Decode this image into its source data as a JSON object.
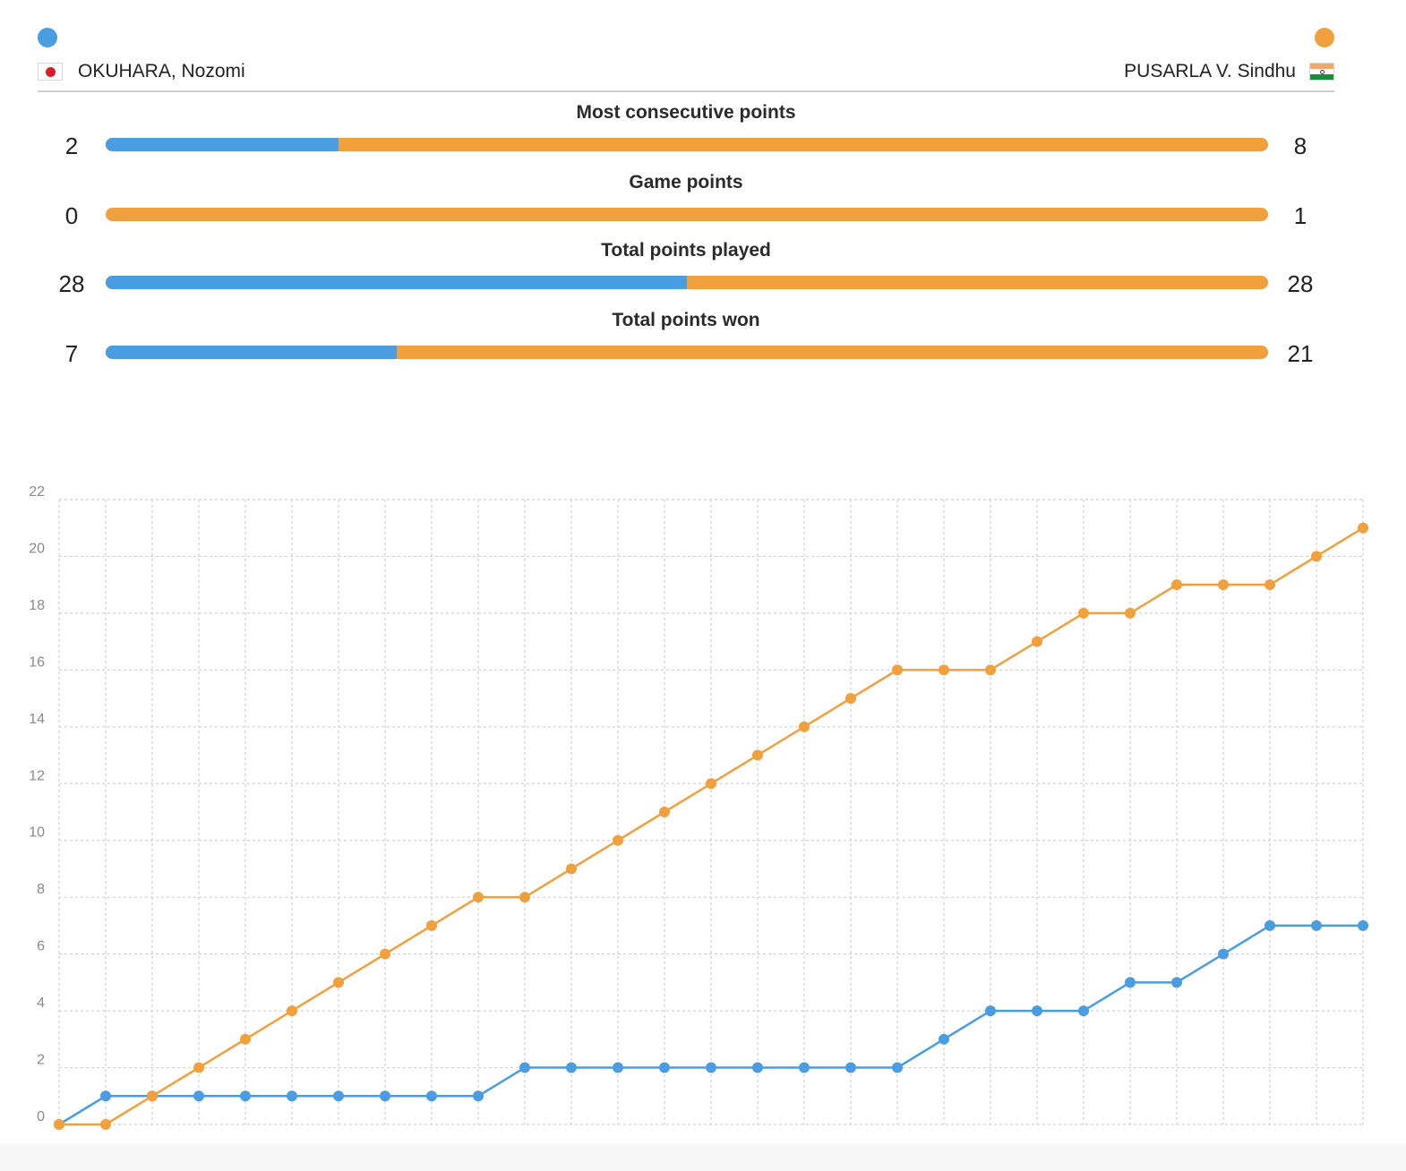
{
  "players": {
    "left": {
      "name": "OKUHARA, Nozomi",
      "color": "#4a9de0",
      "flag": "japan-flag"
    },
    "right": {
      "name": "PUSARLA V. Sindhu",
      "color": "#f0a03c",
      "flag": "india-flag"
    }
  },
  "stats": [
    {
      "title": "Most consecutive points",
      "left": "2",
      "right": "8",
      "left_fraction": 0.2
    },
    {
      "title": "Game points",
      "left": "0",
      "right": "1",
      "left_fraction": 0.0
    },
    {
      "title": "Total points played",
      "left": "28",
      "right": "28",
      "left_fraction": 0.5
    },
    {
      "title": "Total points won",
      "left": "7",
      "right": "21",
      "left_fraction": 0.25
    }
  ],
  "chart_data": {
    "type": "line",
    "title": "",
    "xlabel": "",
    "ylabel": "",
    "x": [
      0,
      1,
      2,
      3,
      4,
      5,
      6,
      7,
      8,
      9,
      10,
      11,
      12,
      13,
      14,
      15,
      16,
      17,
      18,
      19,
      20,
      21,
      22,
      23,
      24,
      25,
      26,
      27,
      28
    ],
    "ylim": [
      0,
      22
    ],
    "yticks": [
      0,
      2,
      4,
      6,
      8,
      10,
      12,
      14,
      16,
      18,
      20,
      22
    ],
    "grid": true,
    "series": [
      {
        "name": "OKUHARA, Nozomi",
        "color": "#4a9de0",
        "values": [
          0,
          1,
          1,
          1,
          1,
          1,
          1,
          1,
          1,
          1,
          2,
          2,
          2,
          2,
          2,
          2,
          2,
          2,
          2,
          3,
          4,
          4,
          4,
          5,
          5,
          6,
          7,
          7,
          7
        ]
      },
      {
        "name": "PUSARLA V. Sindhu",
        "color": "#f0a03c",
        "values": [
          0,
          0,
          1,
          2,
          3,
          4,
          5,
          6,
          7,
          8,
          8,
          9,
          10,
          11,
          12,
          13,
          14,
          15,
          16,
          16,
          16,
          17,
          18,
          18,
          19,
          19,
          19,
          20,
          21
        ]
      }
    ]
  }
}
